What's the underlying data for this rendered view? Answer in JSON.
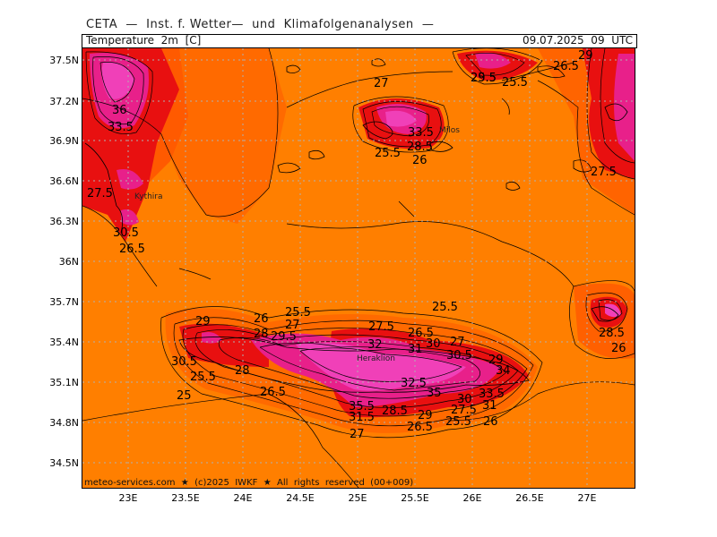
{
  "header": {
    "org": "CETA  —  Inst. f. Wetter—  und  Klimafolgenanalysen  —",
    "variable": "Temperature  2m  [C]",
    "valid_time": "09.07.2025  09  UTC"
  },
  "axes": {
    "lat_labels": [
      "37.5N",
      "37.2N",
      "36.9N",
      "36.6N",
      "36.3N",
      "36N",
      "35.7N",
      "35.4N",
      "35.1N",
      "34.8N",
      "34.5N"
    ],
    "lon_labels": [
      "23E",
      "23.5E",
      "24E",
      "24.5E",
      "25E",
      "25.5E",
      "26E",
      "26.5E",
      "27E"
    ]
  },
  "footer": "meteo-services.com  ★  (c)2025  IWKF  ★  All  rights  reserved  (00+009)",
  "colors": {
    "base_orange": "#ff7f00",
    "warm_orange": "#ff6000",
    "red": "#ee0a14",
    "hot_pink": "#e8208a",
    "hottest_pink": "#f040b8",
    "contour": "#000000",
    "grid": "#b0b0b0"
  },
  "cities": [
    "Kythira",
    "Milos",
    "Heraklion"
  ],
  "contour_labels": [
    "36",
    "33.5",
    "27.5",
    "30.5",
    "26.5",
    "27",
    "25.5",
    "33.5",
    "25.5",
    "28.5",
    "26",
    "29",
    "29.5",
    "25.5",
    "26.5",
    "27.5",
    "29",
    "26",
    "25.5",
    "28",
    "27",
    "29.5",
    "30.5",
    "25.5",
    "25",
    "28",
    "26.5",
    "27.5",
    "32",
    "31",
    "26.5",
    "30",
    "27",
    "25.5",
    "30.5",
    "29",
    "34",
    "32.5",
    "35",
    "30",
    "33.5",
    "31",
    "35.5",
    "31.5",
    "28.5",
    "29",
    "27.5",
    "25.5",
    "26",
    "26.5",
    "27",
    "28.5",
    "26"
  ]
}
